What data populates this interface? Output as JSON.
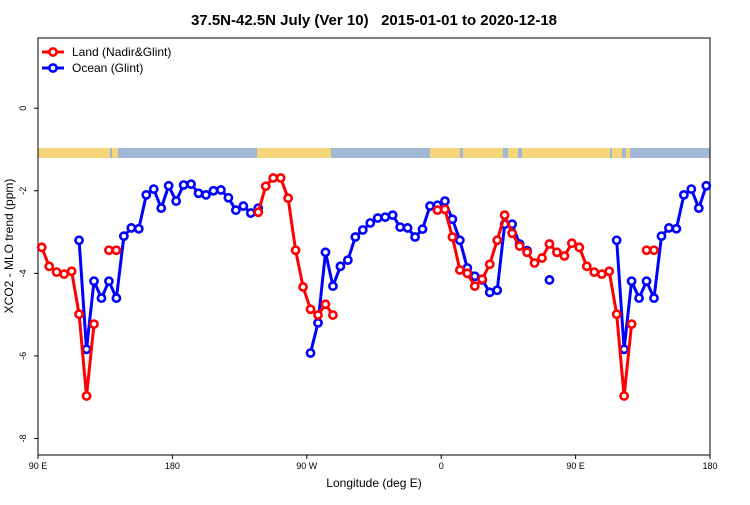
{
  "chart_data": {
    "type": "line",
    "title": "37.5N-42.5N July (Ver 10)   2015-01-01 to 2020-12-18",
    "xlabel": "Longitude (deg E)",
    "ylabel": "XCO2 - MLO trend (ppm)",
    "x": [
      92.5,
      97.5,
      102.5,
      107.5,
      112.5,
      117.5,
      122.5,
      127.5,
      132.5,
      137.5,
      142.5,
      147.5,
      152.5,
      157.5,
      162.5,
      167.5,
      172.5,
      177.5,
      182.5,
      187.5,
      192.5,
      197.5,
      202.5,
      207.5,
      212.5,
      217.5,
      222.5,
      227.5,
      232.5,
      237.5,
      242.5,
      247.5,
      252.5,
      257.5,
      262.5,
      267.5,
      272.5,
      277.5,
      282.5,
      287.5,
      292.5,
      297.5,
      302.5,
      307.5,
      312.5,
      317.5,
      322.5,
      327.5,
      332.5,
      337.5,
      342.5,
      347.5,
      352.5,
      357.5,
      362.5,
      367.5,
      372.5,
      377.5,
      382.5,
      387.5,
      392.5,
      397.5,
      402.5,
      407.5,
      412.5,
      417.5,
      422.5,
      427.5,
      432.5,
      437.5,
      442.5,
      447.5,
      452.5,
      457.5,
      462.5,
      467.5,
      472.5,
      477.5,
      482.5,
      487.5,
      492.5,
      497.5,
      502.5,
      507.5,
      512.5,
      517.5,
      522.5,
      527.5,
      532.5,
      537.5
    ],
    "series": [
      {
        "name": "Ocean (Glint)",
        "color": "#0000ff",
        "values": [
          null,
          null,
          null,
          null,
          null,
          -3.2,
          -5.84,
          -4.19,
          -4.6,
          -4.19,
          -4.6,
          -3.1,
          -2.9,
          -2.92,
          -2.1,
          -1.96,
          -2.42,
          -1.88,
          -2.25,
          -1.86,
          -1.84,
          -2.06,
          -2.1,
          -2.0,
          -1.98,
          -2.17,
          -2.47,
          -2.37,
          -2.54,
          -2.42,
          null,
          null,
          null,
          null,
          null,
          null,
          -5.93,
          -5.2,
          -3.49,
          -4.31,
          -3.83,
          -3.68,
          -3.12,
          -2.95,
          -2.78,
          -2.66,
          -2.64,
          -2.59,
          -2.88,
          -2.9,
          -3.12,
          -2.93,
          -2.37,
          -2.35,
          -2.25,
          -2.69,
          -3.2,
          -3.87,
          -4.07,
          -4.16,
          -4.46,
          -4.41,
          -2.81,
          -2.81,
          -3.29,
          -3.45,
          null,
          null,
          -4.16,
          null,
          null,
          null,
          null,
          null,
          null,
          null,
          null,
          -3.2,
          -5.84,
          -4.19,
          -4.6,
          -4.19,
          -4.6,
          -3.1,
          -2.9,
          -2.92,
          -2.1,
          -1.96,
          -2.42,
          -1.88
        ]
      },
      {
        "name": "Land (Nadir&Glint)",
        "color": "#ff0000",
        "values": [
          -3.37,
          -3.83,
          -3.97,
          -4.02,
          -3.95,
          -4.99,
          -6.97,
          -5.23,
          null,
          -3.44,
          -3.44,
          null,
          null,
          null,
          null,
          null,
          null,
          null,
          null,
          null,
          null,
          null,
          null,
          null,
          null,
          null,
          null,
          null,
          null,
          -2.52,
          -1.89,
          -1.69,
          -1.69,
          -2.18,
          -3.44,
          -4.33,
          -4.87,
          -5.01,
          -4.75,
          -5.01,
          null,
          null,
          null,
          null,
          null,
          null,
          null,
          null,
          null,
          null,
          null,
          null,
          null,
          -2.47,
          -2.45,
          -3.12,
          -3.92,
          -4.0,
          -4.31,
          -4.14,
          -3.78,
          -3.2,
          -2.59,
          -3.03,
          -3.34,
          -3.49,
          -3.75,
          -3.63,
          -3.29,
          -3.49,
          -3.58,
          -3.27,
          -3.37,
          -3.83,
          -3.97,
          -4.02,
          -3.95,
          -4.99,
          -6.97,
          -5.23,
          null,
          -3.44,
          -3.44,
          null,
          null,
          null,
          null,
          null,
          null,
          null
        ]
      }
    ],
    "legend_order": [
      1,
      0
    ],
    "legend": "topleft",
    "xlim": [
      90,
      540
    ],
    "ylim": [
      -8.4,
      1.7
    ],
    "xticks": [
      {
        "value": 90,
        "label": "90 E"
      },
      180,
      {
        "value": 270,
        "label": "90 W"
      },
      {
        "value": 360,
        "label": "0"
      },
      {
        "value": 450,
        "label": "90 E"
      },
      {
        "value": 540,
        "label": "180"
      }
    ],
    "yticks": [
      0,
      -2,
      -4,
      -6,
      -8
    ],
    "grid": false
  }
}
